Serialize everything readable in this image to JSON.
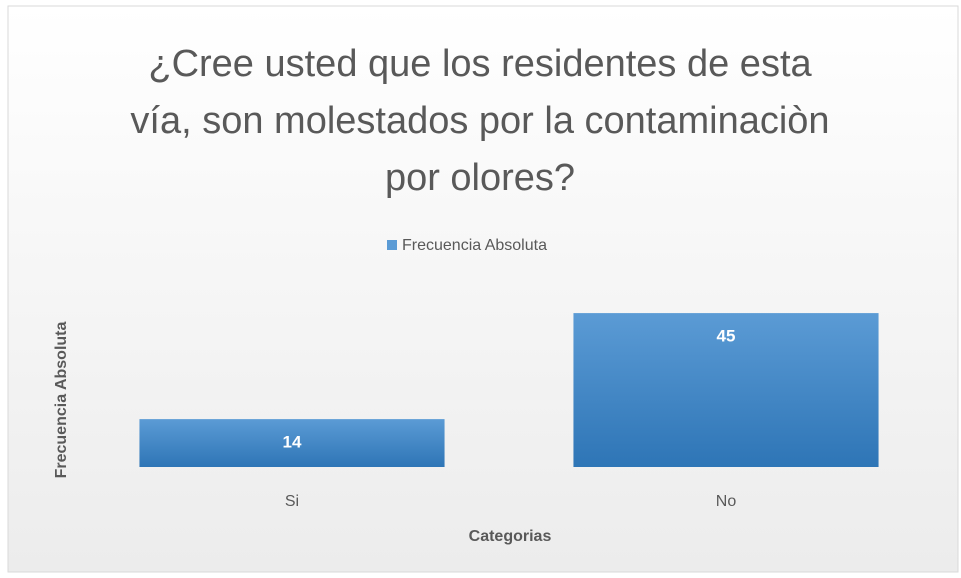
{
  "chart_data": {
    "type": "bar",
    "title": "¿Cree usted que los residentes de esta vía, son molestados por la contaminaciòn por olores?",
    "x_label": "Categorias",
    "y_label": "Frecuencia Absoluta",
    "categories": [
      "Si",
      "No"
    ],
    "series": [
      {
        "name": "Frecuencia Absoluta",
        "color": "#5b9bd5",
        "values": [
          14,
          45
        ]
      }
    ],
    "ylim": [
      0,
      50
    ],
    "legend": "top"
  }
}
